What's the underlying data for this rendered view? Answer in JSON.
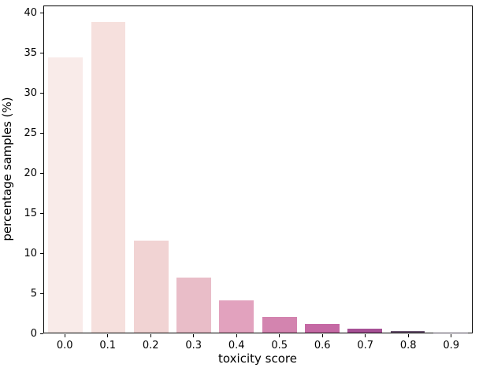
{
  "chart_data": {
    "type": "bar",
    "title": "",
    "xlabel": "toxicity score",
    "ylabel": "percentage samples (%)",
    "categories": [
      "0.0",
      "0.1",
      "0.2",
      "0.3",
      "0.4",
      "0.5",
      "0.6",
      "0.7",
      "0.8",
      "0.9"
    ],
    "values": [
      34.5,
      39.0,
      11.5,
      6.9,
      4.0,
      2.0,
      1.1,
      0.5,
      0.2,
      0.05
    ],
    "bar_colors": [
      "#f9ebe9",
      "#f6e0dd",
      "#f1d3d3",
      "#e9bdc8",
      "#e2a2be",
      "#d384af",
      "#c569a4",
      "#a65095",
      "#6a5470",
      "#473f50"
    ],
    "ylim": [
      0,
      40.95
    ],
    "yticks": [
      0,
      5,
      10,
      15,
      20,
      25,
      30,
      35,
      40
    ],
    "grid": false,
    "legend": null,
    "spine_color": "#000000",
    "background_color": "#ffffff"
  }
}
